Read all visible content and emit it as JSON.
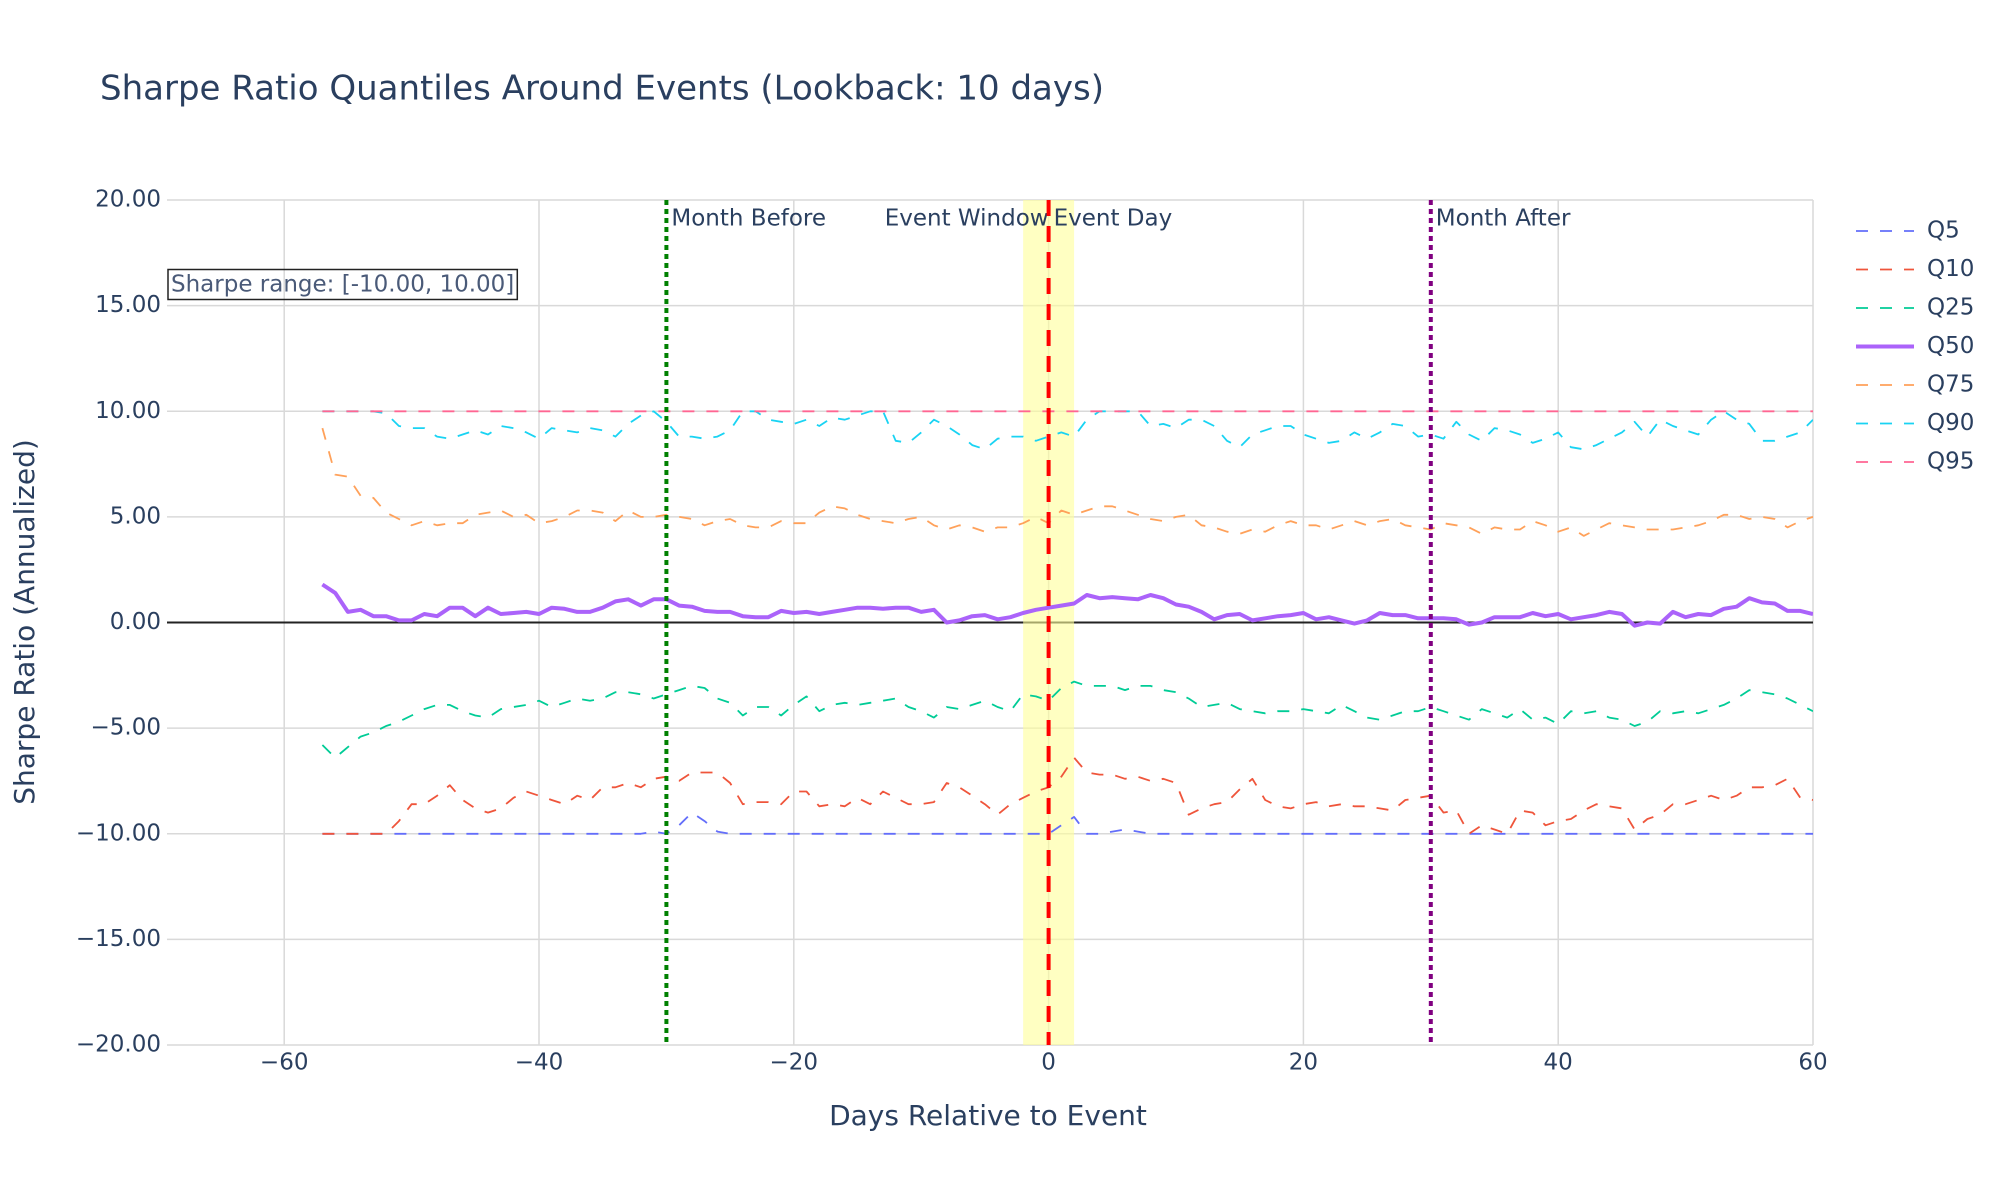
{
  "chart_data": {
    "type": "line",
    "title": "Sharpe Ratio Quantiles Around Events (Lookback: 10 days)",
    "x_label": "Days Relative to Event",
    "y_label": "Sharpe Ratio (Annualized)",
    "annotation": "Sharpe range: [-10.00, 10.00]",
    "xlim": [
      -69.2,
      60
    ],
    "ylim": [
      -20,
      20
    ],
    "xticks": [
      {
        "value": -60,
        "label": "−60"
      },
      {
        "value": -40,
        "label": "−40"
      },
      {
        "value": -20,
        "label": "−20"
      },
      0,
      20,
      40,
      60
    ],
    "yticks": [
      {
        "value": -20,
        "label": "−20.00"
      },
      {
        "value": -15,
        "label": "−15.00"
      },
      {
        "value": -10,
        "label": "−10.00"
      },
      {
        "value": -5,
        "label": "−5.00"
      },
      {
        "value": 0,
        "label": "0.00"
      },
      {
        "value": 5,
        "label": "5.00"
      },
      {
        "value": 10,
        "label": "10.00"
      },
      {
        "value": 15,
        "label": "15.00"
      },
      {
        "value": 20,
        "label": "20.00"
      }
    ],
    "grid": true,
    "zeroline": true,
    "legend": "right",
    "band": {
      "x0": -2,
      "x1": 2,
      "label": "Event Window",
      "color": "#ffff99"
    },
    "vlines": [
      {
        "x": -30,
        "label": "Month Before",
        "color": "green",
        "dash": "dot"
      },
      {
        "x": 0,
        "label": "Event Day",
        "color": "red",
        "dash": "dash"
      },
      {
        "x": 30,
        "label": "Month After",
        "color": "purple",
        "dash": "dot"
      }
    ],
    "x": [
      -57,
      -56,
      -55,
      -54,
      -53,
      -52,
      -51,
      -50,
      -49,
      -48,
      -47,
      -46,
      -45,
      -44,
      -43,
      -42,
      -41,
      -40,
      -39,
      -38,
      -37,
      -36,
      -35,
      -34,
      -33,
      -32,
      -31,
      -30,
      -29,
      -28,
      -27,
      -26,
      -25,
      -24,
      -23,
      -22,
      -21,
      -20,
      -19,
      -18,
      -17,
      -16,
      -15,
      -14,
      -13,
      -12,
      -11,
      -10,
      -9,
      -8,
      -7,
      -6,
      -5,
      -4,
      -3,
      -2,
      -1,
      0,
      1,
      2,
      3,
      4,
      5,
      6,
      7,
      8,
      9,
      10,
      11,
      12,
      13,
      14,
      15,
      16,
      17,
      18,
      19,
      20,
      21,
      22,
      23,
      24,
      25,
      26,
      27,
      28,
      29,
      30,
      31,
      32,
      33,
      34,
      35,
      36,
      37,
      38,
      39,
      40,
      41,
      42,
      43,
      44,
      45,
      46,
      47,
      48,
      49,
      50,
      51,
      52,
      53,
      54,
      55,
      56,
      57,
      58,
      59,
      60
    ],
    "series": [
      {
        "name": "Q5",
        "color": "#636efa",
        "dash": "dash",
        "values": [
          -10,
          -10,
          -10,
          -10,
          -10,
          -10,
          -10,
          -10,
          -10,
          -10,
          -10,
          -10,
          -10,
          -10,
          -10,
          -10,
          -10,
          -10,
          -10,
          -10,
          -10,
          -10,
          -10,
          -10,
          -10,
          -10,
          -9.9,
          -10,
          -9.6,
          -9.0,
          -9.4,
          -9.9,
          -10,
          -10,
          -10,
          -10,
          -10,
          -10,
          -10,
          -10,
          -10,
          -10,
          -10,
          -10,
          -10,
          -10,
          -10,
          -10,
          -10,
          -10,
          -10,
          -10,
          -10,
          -10,
          -10,
          -10,
          -10,
          -10,
          -9.6,
          -9.2,
          -10,
          -10,
          -9.9,
          -9.8,
          -9.9,
          -10,
          -10,
          -10,
          -10,
          -10,
          -10,
          -10,
          -10,
          -10,
          -10,
          -10,
          -10,
          -10,
          -10,
          -10,
          -10,
          -10,
          -10,
          -10,
          -10,
          -10,
          -10,
          -10,
          -10,
          -10,
          -10,
          -10,
          -10,
          -10,
          -10,
          -10,
          -10,
          -10,
          -10,
          -10,
          -10,
          -10,
          -10,
          -10,
          -10,
          -10,
          -10,
          -10,
          -10,
          -10,
          -10,
          -10,
          -10,
          -10,
          -10,
          -10,
          -10,
          -10
        ]
      },
      {
        "name": "Q10",
        "color": "#EF553B",
        "dash": "dash",
        "values": [
          -10,
          -10,
          -10,
          -10,
          -10,
          -10,
          -9.4,
          -8.6,
          -8.6,
          -8.2,
          -7.7,
          -8.4,
          -8.8,
          -9.0,
          -8.8,
          -8.3,
          -8.0,
          -8.2,
          -8.4,
          -8.6,
          -8.2,
          -8.4,
          -7.8,
          -7.8,
          -7.6,
          -7.8,
          -7.4,
          -7.3,
          -7.5,
          -7.1,
          -7.1,
          -7.1,
          -7.6,
          -8.6,
          -8.5,
          -8.5,
          -8.6,
          -8.0,
          -8.0,
          -8.7,
          -8.6,
          -8.7,
          -8.3,
          -8.6,
          -8.0,
          -8.3,
          -8.6,
          -8.6,
          -8.5,
          -7.6,
          -7.8,
          -8.2,
          -8.6,
          -9.1,
          -8.6,
          -8.3,
          -8.0,
          -7.8,
          -7.3,
          -6.4,
          -7.1,
          -7.2,
          -7.2,
          -7.4,
          -7.3,
          -7.5,
          -7.4,
          -7.6,
          -9.1,
          -8.8,
          -8.6,
          -8.5,
          -7.9,
          -7.4,
          -8.4,
          -8.7,
          -8.8,
          -8.6,
          -8.5,
          -8.7,
          -8.6,
          -8.7,
          -8.7,
          -8.8,
          -8.9,
          -8.4,
          -8.3,
          -8.2,
          -9.0,
          -8.9,
          -10,
          -9.6,
          -9.8,
          -10,
          -8.9,
          -9.0,
          -9.6,
          -9.4,
          -9.3,
          -8.9,
          -8.6,
          -8.7,
          -8.8,
          -9.8,
          -9.3,
          -9.1,
          -8.6,
          -8.6,
          -8.4,
          -8.2,
          -8.4,
          -8.2,
          -7.8,
          -7.8,
          -7.7,
          -7.4,
          -8.3,
          -8.4
        ]
      },
      {
        "name": "Q25",
        "color": "#00cc96",
        "dash": "dash",
        "values": [
          -5.8,
          -6.4,
          -5.9,
          -5.4,
          -5.2,
          -4.9,
          -4.7,
          -4.4,
          -4.1,
          -3.9,
          -3.9,
          -4.2,
          -4.4,
          -4.5,
          -4.1,
          -4.0,
          -3.9,
          -3.7,
          -4.0,
          -3.8,
          -3.6,
          -3.7,
          -3.6,
          -3.3,
          -3.3,
          -3.4,
          -3.6,
          -3.4,
          -3.2,
          -3.0,
          -3.1,
          -3.6,
          -3.8,
          -4.4,
          -4.0,
          -4.0,
          -4.4,
          -3.9,
          -3.5,
          -4.2,
          -3.9,
          -3.8,
          -3.9,
          -3.8,
          -3.7,
          -3.6,
          -4.0,
          -4.2,
          -4.5,
          -4.0,
          -4.1,
          -3.9,
          -3.7,
          -4.0,
          -4.2,
          -3.4,
          -3.5,
          -3.7,
          -3.1,
          -2.8,
          -3.0,
          -3.0,
          -3.0,
          -3.2,
          -3.0,
          -3.0,
          -3.2,
          -3.3,
          -3.6,
          -4.0,
          -3.9,
          -3.8,
          -4.1,
          -4.2,
          -4.3,
          -4.2,
          -4.2,
          -4.1,
          -4.2,
          -4.3,
          -3.9,
          -4.2,
          -4.5,
          -4.6,
          -4.4,
          -4.2,
          -4.2,
          -4.0,
          -4.2,
          -4.4,
          -4.6,
          -4.1,
          -4.3,
          -4.5,
          -4.1,
          -4.6,
          -4.5,
          -4.8,
          -4.2,
          -4.3,
          -4.2,
          -4.5,
          -4.6,
          -4.9,
          -4.7,
          -4.2,
          -4.3,
          -4.2,
          -4.3,
          -4.1,
          -3.9,
          -3.6,
          -3.2,
          -3.3,
          -3.4,
          -3.6,
          -3.9,
          -4.2
        ]
      },
      {
        "name": "Q50",
        "color": "#ab63fa",
        "dash": "solid",
        "values": [
          1.8,
          1.4,
          0.5,
          0.6,
          0.3,
          0.3,
          0.1,
          0.1,
          0.4,
          0.3,
          0.7,
          0.7,
          0.3,
          0.7,
          0.4,
          0.45,
          0.5,
          0.4,
          0.7,
          0.65,
          0.5,
          0.5,
          0.7,
          1.0,
          1.1,
          0.8,
          1.1,
          1.1,
          0.8,
          0.75,
          0.55,
          0.5,
          0.5,
          0.3,
          0.25,
          0.25,
          0.55,
          0.45,
          0.5,
          0.4,
          0.5,
          0.6,
          0.7,
          0.7,
          0.65,
          0.7,
          0.7,
          0.5,
          0.6,
          0.0,
          0.1,
          0.3,
          0.35,
          0.15,
          0.25,
          0.45,
          0.6,
          0.7,
          0.8,
          0.9,
          1.3,
          1.15,
          1.2,
          1.15,
          1.1,
          1.3,
          1.15,
          0.85,
          0.75,
          0.5,
          0.15,
          0.35,
          0.4,
          0.1,
          0.2,
          0.3,
          0.35,
          0.45,
          0.15,
          0.25,
          0.1,
          -0.05,
          0.1,
          0.45,
          0.35,
          0.35,
          0.2,
          0.2,
          0.2,
          0.15,
          -0.1,
          0.0,
          0.25,
          0.25,
          0.25,
          0.45,
          0.3,
          0.4,
          0.15,
          0.25,
          0.35,
          0.5,
          0.4,
          -0.15,
          0.0,
          -0.05,
          0.5,
          0.25,
          0.4,
          0.35,
          0.65,
          0.75,
          1.15,
          0.95,
          0.9,
          0.55,
          0.55,
          0.4
        ]
      },
      {
        "name": "Q75",
        "color": "#FFA15A",
        "dash": "dash",
        "values": [
          9.2,
          7,
          6.9,
          6,
          5.9,
          5.2,
          4.9,
          4.6,
          4.8,
          4.6,
          4.7,
          4.7,
          5.1,
          5.2,
          5.3,
          5,
          5.1,
          4.7,
          4.8,
          5,
          5.3,
          5.3,
          5.2,
          4.8,
          5.3,
          5,
          5,
          5.1,
          5,
          4.9,
          4.6,
          4.8,
          4.9,
          4.6,
          4.5,
          4.5,
          4.8,
          4.7,
          4.7,
          5.2,
          5.5,
          5.4,
          5.1,
          4.9,
          4.8,
          4.7,
          4.9,
          5,
          4.6,
          4.4,
          4.6,
          4.5,
          4.3,
          4.5,
          4.5,
          4.7,
          5,
          4.7,
          5.3,
          5.1,
          5.3,
          5.5,
          5.5,
          5.3,
          5.1,
          4.9,
          4.8,
          5,
          5.1,
          4.6,
          4.5,
          4.3,
          4.2,
          4.4,
          4.3,
          4.6,
          4.8,
          4.6,
          4.6,
          4.4,
          4.6,
          4.8,
          4.6,
          4.8,
          4.9,
          4.6,
          4.5,
          4.4,
          4.7,
          4.6,
          4.5,
          4.2,
          4.5,
          4.4,
          4.4,
          4.8,
          4.6,
          4.3,
          4.5,
          4.1,
          4.4,
          4.7,
          4.6,
          4.5,
          4.4,
          4.4,
          4.4,
          4.5,
          4.6,
          4.8,
          5.1,
          5.1,
          4.9,
          5.0,
          4.9,
          4.5,
          4.8,
          5.0
        ]
      },
      {
        "name": "Q90",
        "color": "#19d3f3",
        "dash": "dash",
        "values": [
          10,
          10,
          10,
          10,
          10,
          9.9,
          9.3,
          9.2,
          9.2,
          8.8,
          8.7,
          8.9,
          9.1,
          8.9,
          9.3,
          9.2,
          9.0,
          8.7,
          9.2,
          9.1,
          9.0,
          9.2,
          9.1,
          8.8,
          9.4,
          9.8,
          10,
          9.5,
          8.8,
          8.8,
          8.7,
          8.8,
          9.1,
          10,
          10,
          9.6,
          9.5,
          9.4,
          9.6,
          9.3,
          9.7,
          9.6,
          9.8,
          10,
          10,
          8.6,
          8.5,
          9.0,
          9.6,
          9.3,
          8.9,
          8.4,
          8.2,
          8.7,
          8.8,
          8.8,
          8.6,
          8.8,
          9.0,
          8.8,
          9.6,
          10,
          10,
          10,
          10,
          9.3,
          9.4,
          9.2,
          9.6,
          9.6,
          9.3,
          8.6,
          8.3,
          8.9,
          9.1,
          9.3,
          9.3,
          8.9,
          8.7,
          8.5,
          8.6,
          9.0,
          8.7,
          9.0,
          9.4,
          9.3,
          8.8,
          8.9,
          8.7,
          9.5,
          8.9,
          8.6,
          9.2,
          9.1,
          8.9,
          8.5,
          8.7,
          9.0,
          8.3,
          8.2,
          8.4,
          8.7,
          9.0,
          9.5,
          8.8,
          9.6,
          9.3,
          9.1,
          8.9,
          9.6,
          10,
          9.6,
          9.4,
          8.6,
          8.6,
          8.8,
          9.0,
          9.6
        ]
      },
      {
        "name": "Q95",
        "color": "#FF6692",
        "dash": "dash",
        "values": [
          10,
          10,
          10,
          10,
          10,
          10,
          10,
          10,
          10,
          10,
          10,
          10,
          10,
          10,
          10,
          10,
          10,
          10,
          10,
          10,
          10,
          10,
          10,
          10,
          10,
          10,
          10,
          10,
          10,
          10,
          10,
          10,
          10,
          10,
          10,
          10,
          10,
          10,
          10,
          10,
          10,
          10,
          10,
          10,
          10,
          10,
          10,
          10,
          10,
          10,
          10,
          10,
          10,
          10,
          10,
          10,
          10,
          10,
          10,
          10,
          10,
          10,
          10,
          10,
          10,
          10,
          10,
          10,
          10,
          10,
          10,
          10,
          10,
          10,
          10,
          10,
          10,
          10,
          10,
          10,
          10,
          10,
          10,
          10,
          10,
          10,
          10,
          10,
          10,
          10,
          10,
          10,
          10,
          10,
          10,
          10,
          10,
          10,
          10,
          10,
          10,
          10,
          10,
          10,
          10,
          10,
          10,
          10,
          10,
          10,
          10,
          10,
          10,
          10,
          10,
          10,
          10,
          10
        ]
      }
    ]
  }
}
